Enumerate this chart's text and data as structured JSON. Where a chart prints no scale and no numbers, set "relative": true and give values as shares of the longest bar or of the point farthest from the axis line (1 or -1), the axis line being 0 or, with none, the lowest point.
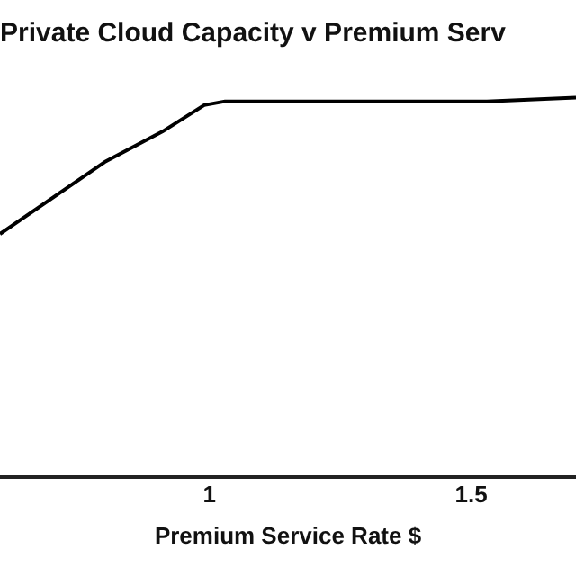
{
  "chart_data": {
    "type": "line",
    "title": "Private Cloud Capacity v Premium Serv",
    "xlabel": "Premium Service Rate $",
    "relative": true,
    "x": [
      0.6,
      0.8,
      0.91,
      0.99,
      1.03,
      1.29,
      1.53,
      1.7
    ],
    "series": [
      {
        "color": "#000000",
        "values": [
          0.64,
          0.83,
          0.91,
          0.98,
          0.99,
          0.99,
          0.99,
          1
        ]
      }
    ],
    "xlim": [
      0.6,
      1.7
    ],
    "xticks": [
      1,
      1.5
    ],
    "grid": false,
    "legend": false,
    "marker": "none",
    "line_style": "solid"
  }
}
